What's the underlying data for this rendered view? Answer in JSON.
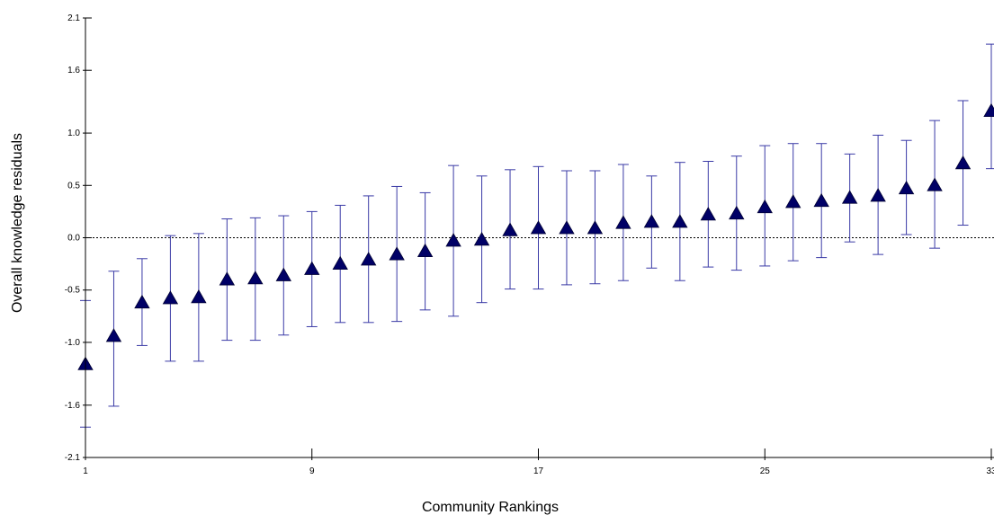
{
  "chart_data": {
    "type": "scatter",
    "title": "",
    "xlabel": "Community Rankings",
    "ylabel": "Overall knowledge residuals",
    "xlim": [
      1,
      33
    ],
    "ylim": [
      -2.1,
      2.1
    ],
    "x_ticks": [
      1,
      9,
      17,
      25,
      33
    ],
    "x_tick_labels": [
      "1",
      "9",
      "17",
      "25",
      "33"
    ],
    "y_ticks": [
      -2.1,
      -1.6,
      -1.0,
      -0.5,
      0.0,
      0.5,
      1.0,
      1.6,
      2.1
    ],
    "y_tick_labels": [
      "-2.1",
      "-1.6",
      "-1.0",
      "-0.5",
      "0.0",
      "0.5",
      "1.0",
      "1.6",
      "2.1"
    ],
    "reference_line": 0.0,
    "grid": false,
    "marker": "triangle",
    "colors": {
      "marker": "#000066",
      "errorbar": "#3a3aa6",
      "axis": "#000000"
    },
    "points": [
      {
        "x": 1,
        "y": -1.21,
        "low": -1.81,
        "high": -0.6
      },
      {
        "x": 2,
        "y": -0.94,
        "low": -1.61,
        "high": -0.32
      },
      {
        "x": 3,
        "y": -0.62,
        "low": -1.03,
        "high": -0.2
      },
      {
        "x": 4,
        "y": -0.58,
        "low": -1.18,
        "high": 0.02
      },
      {
        "x": 5,
        "y": -0.57,
        "low": -1.18,
        "high": 0.04
      },
      {
        "x": 6,
        "y": -0.4,
        "low": -0.98,
        "high": 0.18
      },
      {
        "x": 7,
        "y": -0.39,
        "low": -0.98,
        "high": 0.19
      },
      {
        "x": 8,
        "y": -0.36,
        "low": -0.93,
        "high": 0.21
      },
      {
        "x": 9,
        "y": -0.3,
        "low": -0.85,
        "high": 0.25
      },
      {
        "x": 10,
        "y": -0.25,
        "low": -0.81,
        "high": 0.31
      },
      {
        "x": 11,
        "y": -0.21,
        "low": -0.81,
        "high": 0.4
      },
      {
        "x": 12,
        "y": -0.16,
        "low": -0.8,
        "high": 0.49
      },
      {
        "x": 13,
        "y": -0.13,
        "low": -0.69,
        "high": 0.43
      },
      {
        "x": 14,
        "y": -0.03,
        "low": -0.75,
        "high": 0.69
      },
      {
        "x": 15,
        "y": -0.02,
        "low": -0.62,
        "high": 0.59
      },
      {
        "x": 16,
        "y": 0.07,
        "low": -0.49,
        "high": 0.65
      },
      {
        "x": 17,
        "y": 0.09,
        "low": -0.49,
        "high": 0.68
      },
      {
        "x": 18,
        "y": 0.09,
        "low": -0.45,
        "high": 0.64
      },
      {
        "x": 19,
        "y": 0.09,
        "low": -0.44,
        "high": 0.64
      },
      {
        "x": 20,
        "y": 0.14,
        "low": -0.41,
        "high": 0.7
      },
      {
        "x": 21,
        "y": 0.15,
        "low": -0.29,
        "high": 0.59
      },
      {
        "x": 22,
        "y": 0.15,
        "low": -0.41,
        "high": 0.72
      },
      {
        "x": 23,
        "y": 0.22,
        "low": -0.28,
        "high": 0.73
      },
      {
        "x": 24,
        "y": 0.23,
        "low": -0.31,
        "high": 0.78
      },
      {
        "x": 25,
        "y": 0.29,
        "low": -0.27,
        "high": 0.88
      },
      {
        "x": 26,
        "y": 0.34,
        "low": -0.22,
        "high": 0.9
      },
      {
        "x": 27,
        "y": 0.35,
        "low": -0.19,
        "high": 0.9
      },
      {
        "x": 28,
        "y": 0.38,
        "low": -0.04,
        "high": 0.8
      },
      {
        "x": 29,
        "y": 0.4,
        "low": -0.16,
        "high": 0.98
      },
      {
        "x": 30,
        "y": 0.47,
        "low": 0.03,
        "high": 0.93
      },
      {
        "x": 31,
        "y": 0.5,
        "low": -0.1,
        "high": 1.12
      },
      {
        "x": 32,
        "y": 0.71,
        "low": 0.12,
        "high": 1.31
      },
      {
        "x": 33,
        "y": 1.21,
        "low": 0.66,
        "high": 1.85
      }
    ]
  }
}
